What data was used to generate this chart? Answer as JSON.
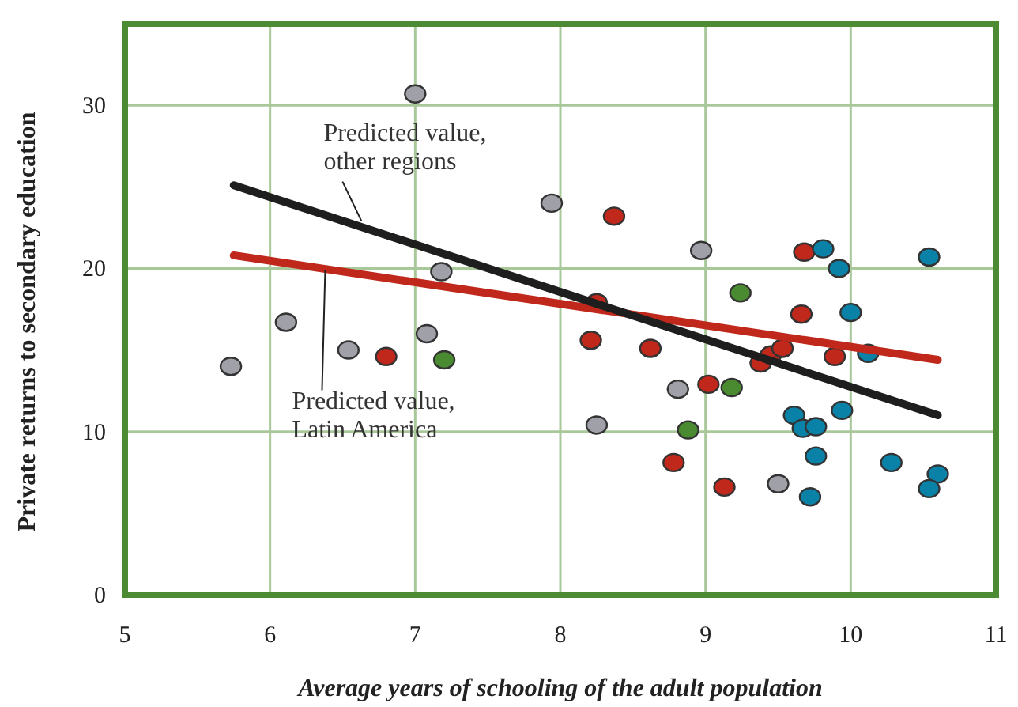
{
  "chart_data": {
    "type": "scatter",
    "xlabel": "Average years of schooling of the adult population",
    "ylabel": "Private returns to secondary education",
    "xlim": [
      5,
      11
    ],
    "ylim": [
      0,
      35
    ],
    "xticks": [
      5,
      6,
      7,
      8,
      9,
      10,
      11
    ],
    "yticks": [
      0,
      10,
      20,
      30
    ],
    "grid": true,
    "marker": "circle",
    "series": [
      {
        "color": "#a0a0a8",
        "x": [
          5.73,
          6.11,
          6.54,
          7.0,
          7.08,
          7.18,
          7.94,
          8.97,
          8.81,
          8.25,
          9.5
        ],
        "values": [
          14.0,
          16.7,
          15.0,
          30.7,
          16.0,
          19.8,
          24.0,
          21.1,
          12.6,
          10.4,
          6.8
        ]
      },
      {
        "color": "#c0281c",
        "x": [
          6.8,
          8.37,
          9.68,
          8.25,
          9.66,
          8.21,
          8.62,
          9.02,
          8.78,
          9.13,
          9.38,
          9.45,
          9.53,
          9.89
        ],
        "values": [
          14.6,
          23.2,
          21.0,
          17.9,
          17.2,
          15.6,
          15.1,
          12.9,
          8.1,
          6.6,
          14.2,
          14.7,
          15.1,
          14.6
        ]
      },
      {
        "color": "#4a8a30",
        "x": [
          7.2,
          9.24,
          9.18,
          8.88
        ],
        "values": [
          14.4,
          18.5,
          12.7,
          10.1
        ]
      },
      {
        "color": "#0a82a8",
        "x": [
          9.81,
          9.92,
          10.54,
          10.0,
          10.12,
          9.61,
          9.67,
          9.76,
          9.94,
          9.76,
          10.28,
          10.6,
          10.54,
          9.72
        ],
        "values": [
          21.2,
          20.0,
          20.7,
          17.3,
          14.8,
          11.0,
          10.2,
          10.3,
          11.3,
          8.5,
          8.1,
          7.4,
          6.5,
          6.0
        ]
      },
      {
        "type": "line",
        "marker": "none",
        "color": "#c0281c",
        "x": [
          5.75,
          10.6
        ],
        "values": [
          20.8,
          14.4
        ]
      },
      {
        "type": "line",
        "marker": "none",
        "color": "#1e1e1e",
        "x": [
          5.75,
          10.6
        ],
        "values": [
          25.1,
          11.0
        ]
      }
    ],
    "annotations": [
      {
        "text": "Predicted value,\nother regions",
        "x": 6.63,
        "y": 22.9
      },
      {
        "text": "Predicted value,\nLatin America",
        "x": 6.38,
        "y": 19.9
      }
    ]
  }
}
